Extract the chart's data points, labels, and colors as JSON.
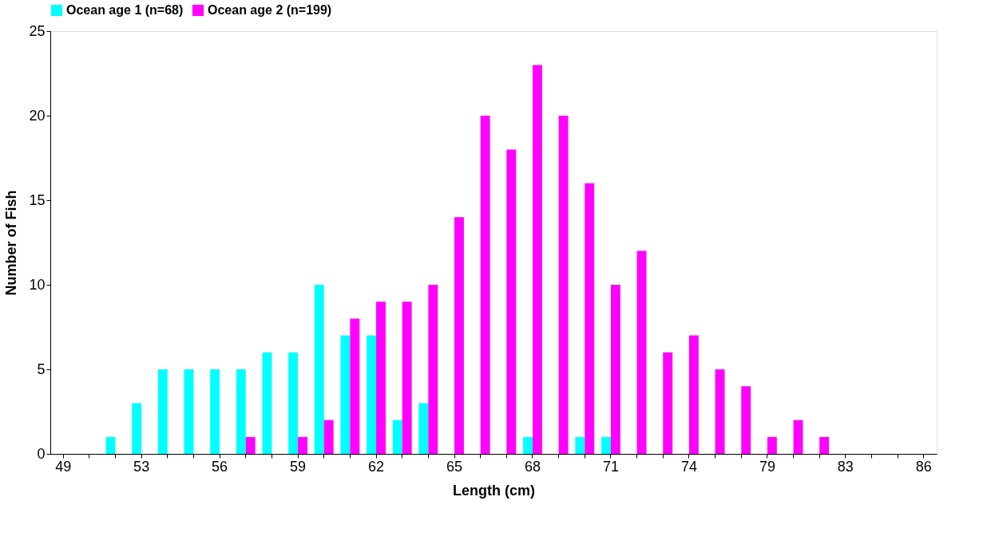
{
  "chart_data": {
    "type": "bar",
    "xlabel": "Length (cm)",
    "ylabel": "Number of Fish",
    "categories": [
      "49",
      null,
      null,
      "53",
      null,
      null,
      "56",
      null,
      null,
      "59",
      null,
      null,
      "62",
      null,
      null,
      "65",
      null,
      null,
      "68",
      null,
      null,
      "71",
      null,
      null,
      "74",
      null,
      null,
      "79",
      null,
      null,
      "83",
      null,
      null,
      "86"
    ],
    "series": [
      {
        "name": "Ocean age 1 (n=68)",
        "color": "#00ffff",
        "values": [
          null,
          null,
          1,
          3,
          5,
          5,
          5,
          5,
          6,
          6,
          10,
          7,
          7,
          2,
          3,
          null,
          null,
          null,
          1,
          null,
          1,
          1,
          null,
          null,
          null,
          null,
          null,
          null,
          null,
          null,
          null,
          null,
          null,
          null
        ]
      },
      {
        "name": "Ocean age 2 (n=199)",
        "color": "#ff00ff",
        "values": [
          null,
          null,
          null,
          null,
          null,
          null,
          null,
          1,
          null,
          1,
          2,
          8,
          9,
          9,
          10,
          14,
          20,
          18,
          23,
          20,
          16,
          10,
          12,
          6,
          7,
          5,
          4,
          1,
          2,
          1,
          null,
          null,
          null,
          null
        ]
      }
    ],
    "ylim": [
      0,
      25
    ],
    "yticks": [
      0,
      5,
      10,
      15,
      20,
      25
    ],
    "grid": false,
    "legend": "top"
  }
}
